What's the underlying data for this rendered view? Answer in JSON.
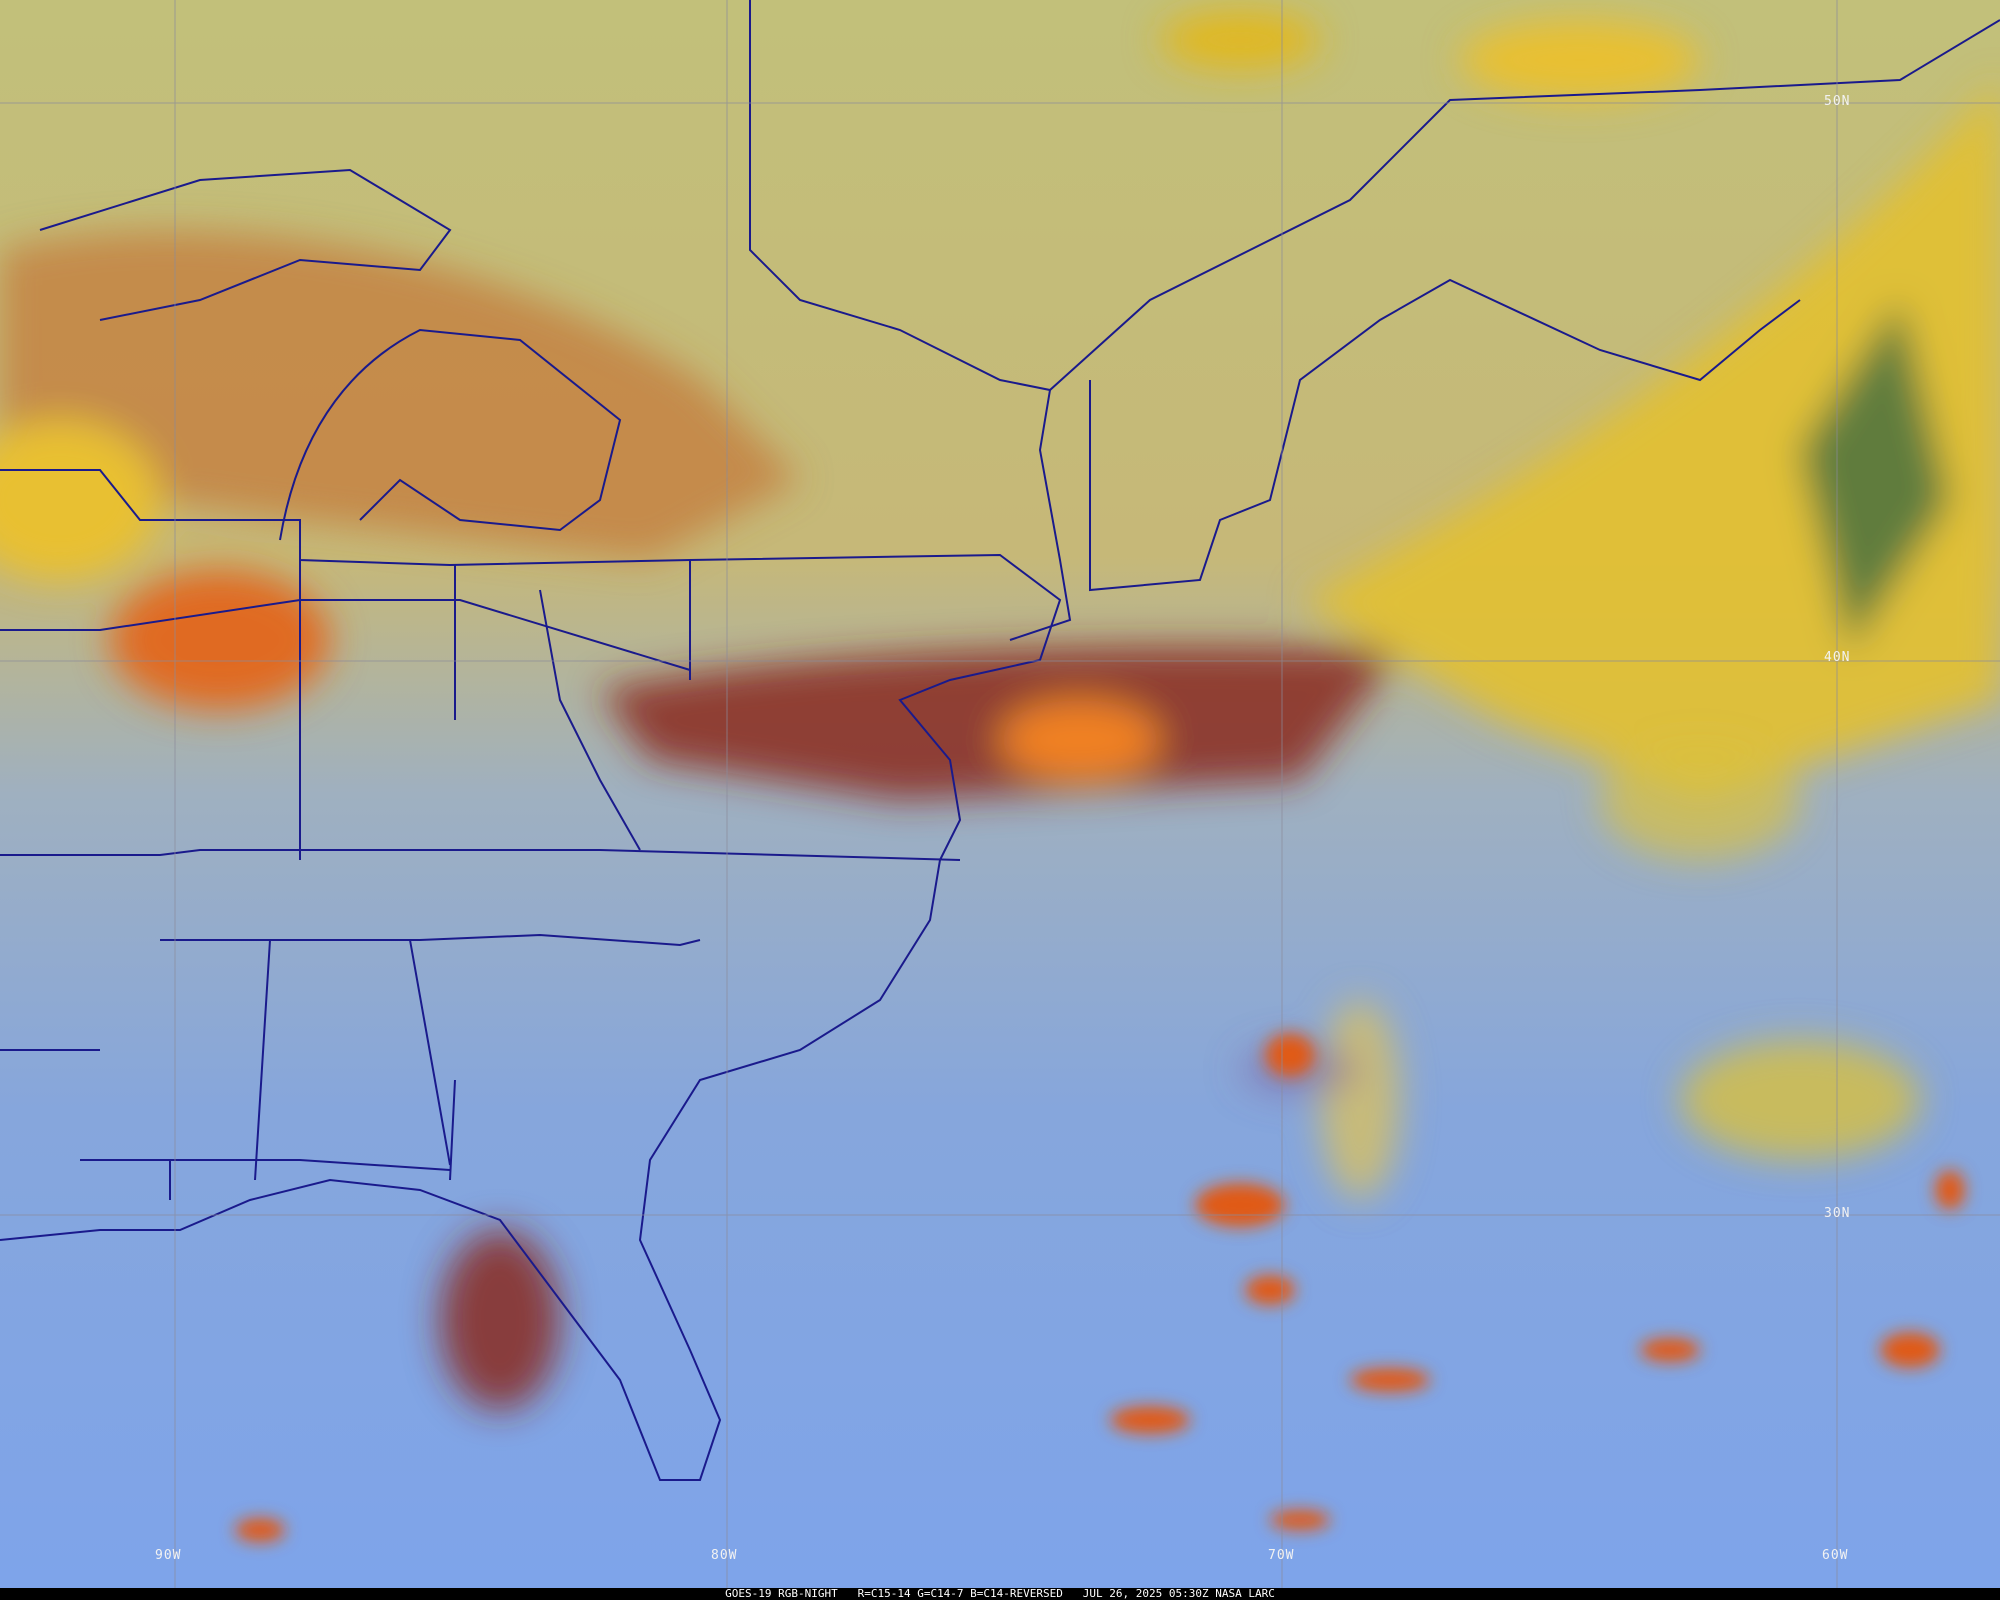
{
  "map": {
    "product": "GOES-19 RGB-NIGHT",
    "recipe": "R=C15-14 G=C14-7 B=C14-REVERSED",
    "datetime": "JUL 26, 2025 05:30Z",
    "source": "NASA LARC",
    "lat_labels": [
      "50N",
      "40N",
      "30N"
    ],
    "lon_labels": [
      "90W",
      "80W",
      "70W",
      "60W"
    ],
    "colors": {
      "ocean_clear": "#7fa6e6",
      "land": "#c9b878",
      "cloud_high": "#e8c83a",
      "cloud_deep": "#d2461c",
      "border": "#1a1a8c",
      "grid": "#8a8a9a"
    }
  }
}
